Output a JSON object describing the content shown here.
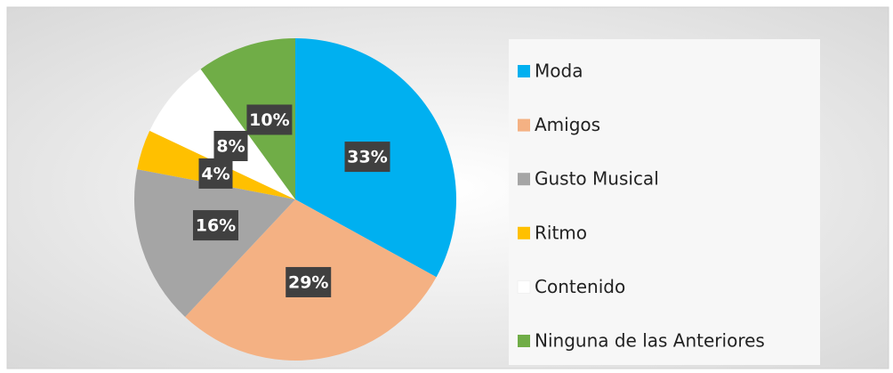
{
  "chart_data": {
    "type": "pie",
    "categories": [
      "Moda",
      "Amigos",
      "Gusto Musical",
      "Ritmo",
      "Contenido",
      "Ninguna de las Anteriores"
    ],
    "values": [
      33,
      29,
      16,
      4,
      8,
      10
    ],
    "value_labels": [
      "33%",
      "29%",
      "16%",
      "4%",
      "8%",
      "10%"
    ],
    "colors": [
      "#00b0f0",
      "#f4b183",
      "#a5a5a5",
      "#ffc000",
      "#ffffff",
      "#70ad47"
    ],
    "legend": "right"
  }
}
